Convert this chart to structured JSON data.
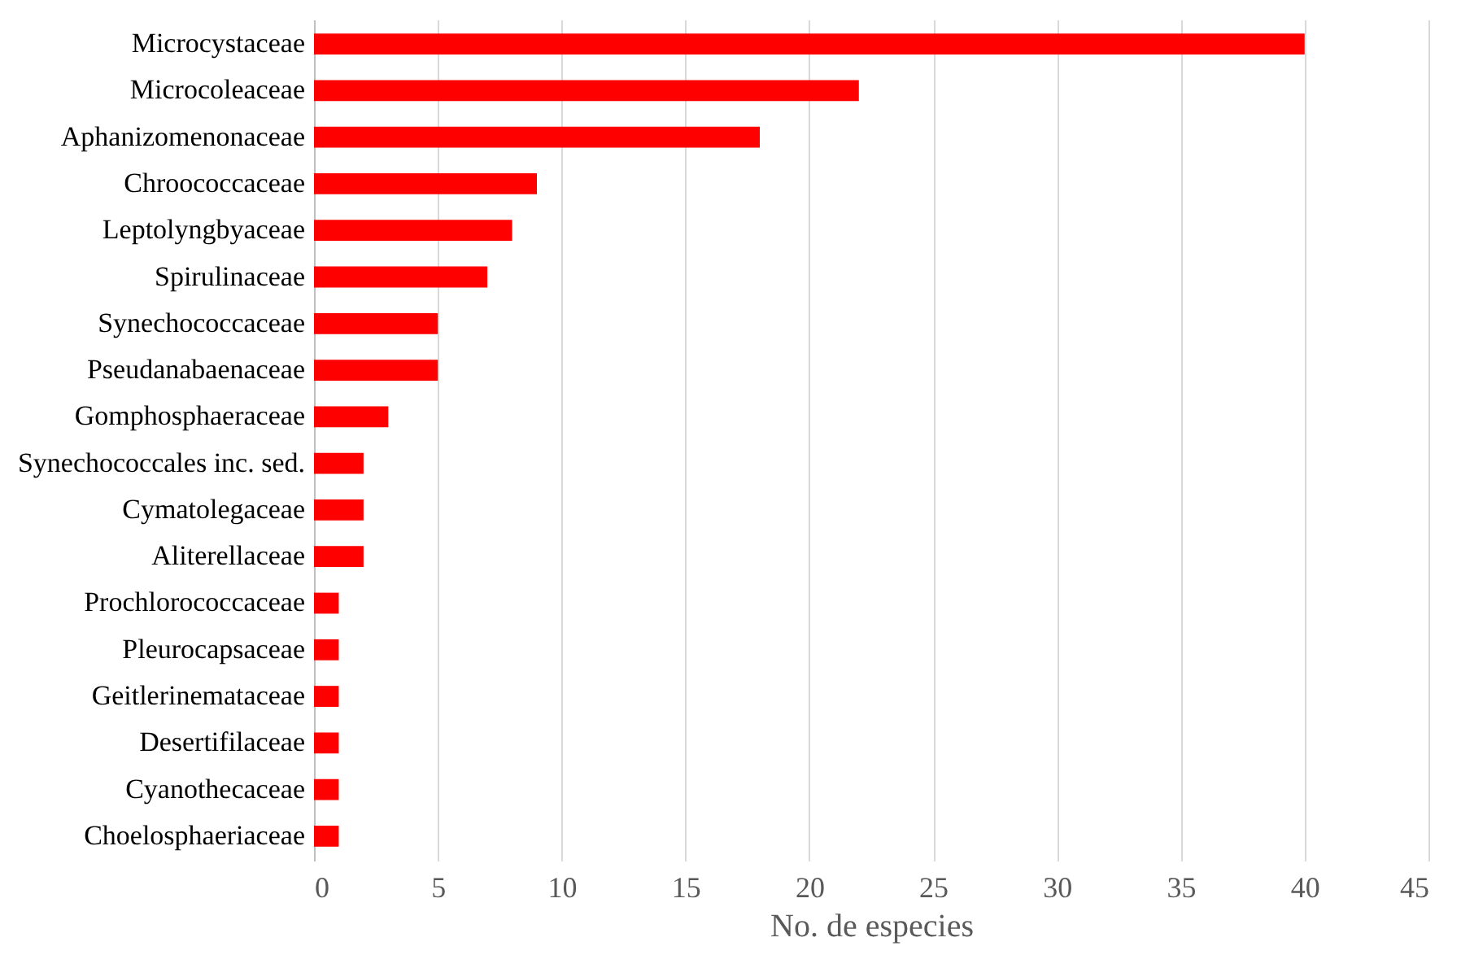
{
  "chart_data": {
    "type": "bar",
    "orientation": "horizontal",
    "xlabel": "No. de especies",
    "categories": [
      "Microcystaceae",
      "Microcoleaceae",
      "Aphanizomenonaceae",
      "Chroococcaceae",
      "Leptolyngbyaceae",
      "Spirulinaceae",
      "Synechococcaceae",
      "Pseudanabaenaceae",
      "Gomphosphaeraceae",
      "Synechococcales inc. sed.",
      "Cymatolegaceae",
      "Aliterellaceae",
      "Prochlorococcaceae",
      "Pleurocapsaceae",
      "Geitlerinemataceae",
      "Desertifilaceae",
      "Cyanothecaceae",
      "Choelosphaeriaceae"
    ],
    "values": [
      40,
      22,
      18,
      9,
      8,
      7,
      5,
      5,
      3,
      2,
      2,
      2,
      1,
      1,
      1,
      1,
      1,
      1
    ],
    "color": "#ff0000",
    "xlim": [
      0,
      45
    ],
    "xticks": [
      0,
      5,
      10,
      15,
      20,
      25,
      30,
      35,
      40,
      45
    ],
    "grid": "x"
  }
}
